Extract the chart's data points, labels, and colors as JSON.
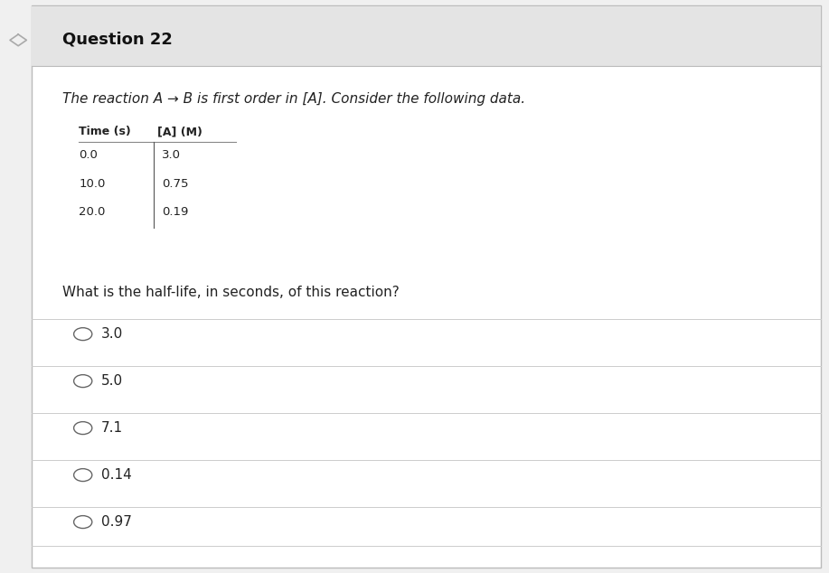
{
  "title": "Question 22",
  "background_color": "#f0f0f0",
  "content_background": "#ffffff",
  "header_background": "#e4e4e4",
  "italic_text": "The reaction A → B is first order in [A]. Consider the following data.",
  "table_headers": [
    "Time (s)",
    "[A] (M)"
  ],
  "table_data": [
    [
      "0.0",
      "3.0"
    ],
    [
      "10.0",
      "0.75"
    ],
    [
      "20.0",
      "0.19"
    ]
  ],
  "question_text": "What is the half-life, in seconds, of this reaction?",
  "choices": [
    "3.0",
    "5.0",
    "7.1",
    "0.14",
    "0.97"
  ],
  "choice_divider_color": "#cccccc",
  "header_line_color": "#888888",
  "table_divider_color": "#555555",
  "font_size_title": 13,
  "font_size_body": 11,
  "font_size_table_header": 9,
  "font_size_table_data": 9.5,
  "font_size_question": 11,
  "font_size_choices": 11,
  "bar_width": 0.038
}
